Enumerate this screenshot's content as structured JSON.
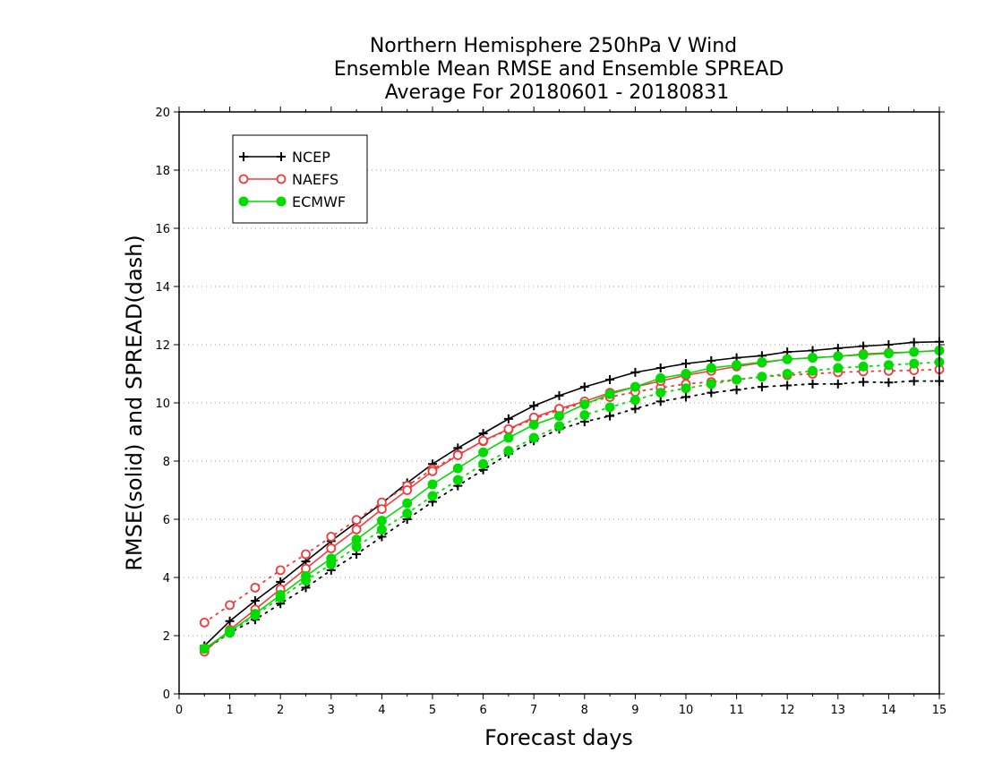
{
  "chart_data": {
    "type": "line",
    "title_lines": [
      "Northern Hemisphere 250hPa V Wind",
      "Ensemble Mean RMSE and Ensemble SPREAD",
      "Average For 20180601 - 20180831"
    ],
    "xlabel": "Forecast days",
    "ylabel": "RMSE(solid) and SPREAD(dash)",
    "xlim": [
      0,
      15
    ],
    "ylim": [
      0,
      20
    ],
    "xticks": [
      "0",
      "1",
      "2",
      "3",
      "4",
      "5",
      "6",
      "7",
      "8",
      "9",
      "10",
      "11",
      "12",
      "13",
      "14",
      "15"
    ],
    "yticks": [
      "0",
      "2",
      "4",
      "6",
      "8",
      "10",
      "12",
      "14",
      "16",
      "18",
      "20"
    ],
    "grid": true,
    "legend_position": "top-left",
    "x": [
      0.5,
      1,
      1.5,
      2,
      2.5,
      3,
      3.5,
      4,
      4.5,
      5,
      5.5,
      6,
      6.5,
      7,
      7.5,
      8,
      8.5,
      9,
      9.5,
      10,
      10.5,
      11,
      11.5,
      12,
      12.5,
      13,
      13.5,
      14,
      14.5,
      15
    ],
    "series": [
      {
        "name": "NCEP",
        "color": "#000000",
        "marker": "plus",
        "rmse": [
          1.65,
          2.5,
          3.2,
          3.85,
          4.55,
          5.25,
          5.9,
          6.55,
          7.25,
          7.9,
          8.45,
          8.95,
          9.45,
          9.9,
          10.25,
          10.55,
          10.8,
          11.05,
          11.2,
          11.35,
          11.45,
          11.55,
          11.62,
          11.75,
          11.8,
          11.88,
          11.95,
          12.0,
          12.08,
          12.1
        ],
        "spread": [
          1.5,
          2.1,
          2.55,
          3.1,
          3.65,
          4.25,
          4.8,
          5.4,
          6.0,
          6.6,
          7.15,
          7.7,
          8.25,
          8.7,
          9.1,
          9.35,
          9.55,
          9.8,
          10.05,
          10.2,
          10.35,
          10.45,
          10.55,
          10.6,
          10.65,
          10.65,
          10.72,
          10.7,
          10.75,
          10.75
        ]
      },
      {
        "name": "NAEFS",
        "color": "#f03c3c",
        "marker": "open-circle",
        "rmse": [
          1.45,
          2.2,
          2.9,
          3.6,
          4.3,
          5.0,
          5.65,
          6.35,
          7.0,
          7.65,
          8.2,
          8.7,
          9.1,
          9.5,
          9.8,
          10.05,
          10.35,
          10.55,
          10.75,
          10.95,
          11.1,
          11.25,
          11.38,
          11.5,
          11.55,
          11.6,
          11.68,
          11.72,
          11.75,
          11.8
        ],
        "spread": [
          2.45,
          3.05,
          3.65,
          4.25,
          4.8,
          5.4,
          5.98,
          6.58,
          7.15,
          7.72,
          8.22,
          8.68,
          9.08,
          9.45,
          9.75,
          10.0,
          10.2,
          10.38,
          10.52,
          10.65,
          10.72,
          10.8,
          10.9,
          10.95,
          11.0,
          11.05,
          11.08,
          11.1,
          11.12,
          11.15
        ]
      },
      {
        "name": "ECMWF",
        "color": "#00dc00",
        "marker": "filled-circle",
        "rmse": [
          1.55,
          2.15,
          2.75,
          3.4,
          4.05,
          4.65,
          5.3,
          5.95,
          6.55,
          7.2,
          7.75,
          8.3,
          8.8,
          9.25,
          9.55,
          9.95,
          10.3,
          10.55,
          10.85,
          11.0,
          11.2,
          11.3,
          11.4,
          11.5,
          11.55,
          11.6,
          11.65,
          11.7,
          11.75,
          11.8
        ],
        "spread": [
          1.55,
          2.1,
          2.7,
          3.3,
          3.9,
          4.45,
          5.05,
          5.65,
          6.2,
          6.8,
          7.35,
          7.9,
          8.35,
          8.8,
          9.2,
          9.58,
          9.85,
          10.1,
          10.35,
          10.5,
          10.65,
          10.8,
          10.9,
          11.0,
          11.1,
          11.2,
          11.25,
          11.3,
          11.35,
          11.4
        ]
      }
    ]
  }
}
